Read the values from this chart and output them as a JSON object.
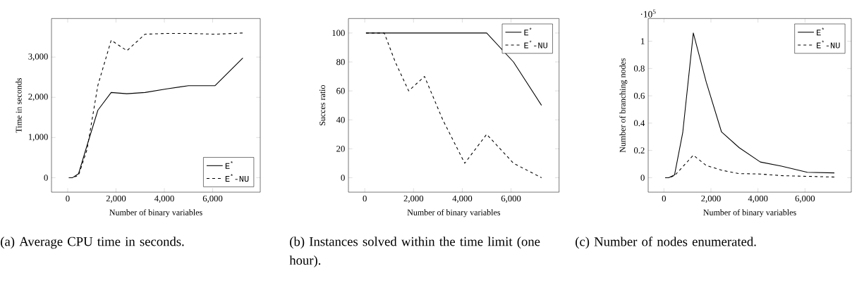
{
  "chart_data": [
    {
      "type": "line",
      "title": "(a) Average CPU time in seconds.",
      "xlabel": "Number of binary variables",
      "ylabel": "Time in seconds",
      "x": [
        50,
        200,
        450,
        800,
        1250,
        1800,
        2450,
        3200,
        4100,
        5000,
        6100,
        7250
      ],
      "series": [
        {
          "name": "E$^{*}$",
          "color": "#000000",
          "line_style": "solid",
          "values": [
            0,
            0,
            100,
            800,
            1680,
            2120,
            2090,
            2120,
            2210,
            2290,
            2290,
            2980
          ]
        },
        {
          "name": "E$^{*}$-NU",
          "color": "#000000",
          "line_style": "dashed",
          "values": [
            0,
            0,
            60,
            700,
            2300,
            3420,
            3160,
            3570,
            3590,
            3590,
            3570,
            3600
          ]
        }
      ],
      "xlim": [
        -670,
        7970
      ],
      "ylim": [
        -360,
        3960
      ],
      "xticks": [
        0,
        {
          "value": 2000,
          "label": "2,000"
        },
        {
          "value": 4000,
          "label": "4,000"
        },
        {
          "value": 6000,
          "label": "6,000"
        }
      ],
      "yticks": [
        0,
        {
          "value": 1000,
          "label": "1,000"
        },
        {
          "value": 2000,
          "label": "2,000"
        },
        {
          "value": 3000,
          "label": "3,000"
        }
      ],
      "legend": "bottom right",
      "marker": "none",
      "grid": false
    },
    {
      "type": "line",
      "title": "(b) Instances solved within the time limit (one hour).",
      "xlabel": "Number of binary variables",
      "ylabel": "Succes ratio",
      "x": [
        50,
        200,
        450,
        800,
        1250,
        1800,
        2450,
        3200,
        4100,
        5000,
        6100,
        7250
      ],
      "series": [
        {
          "name": "E$^{*}$",
          "color": "#000000",
          "line_style": "solid",
          "values": [
            100,
            100,
            100,
            100,
            100,
            100,
            100,
            100,
            100,
            100,
            80,
            50
          ]
        },
        {
          "name": "E$^{*}$-NU",
          "color": "#000000",
          "line_style": "dashed",
          "values": [
            100,
            100,
            100,
            100,
            80,
            60,
            70,
            40,
            10,
            30,
            10,
            0
          ]
        }
      ],
      "xlim": [
        -670,
        7970
      ],
      "ylim": [
        -10,
        110
      ],
      "xticks": [
        0,
        {
          "value": 2000,
          "label": "2,000"
        },
        {
          "value": 4000,
          "label": "4,000"
        },
        {
          "value": 6000,
          "label": "6,000"
        }
      ],
      "yticks": [
        0,
        20,
        40,
        60,
        80,
        100
      ],
      "legend": "top right",
      "marker": "none",
      "grid": false
    },
    {
      "type": "line",
      "title": "(c) Number of nodes enumerated.",
      "xlabel": "Number of binary variables",
      "ylabel": "Number of branching nodes",
      "annotations": [
        "·10$^{5}$"
      ],
      "x": [
        50,
        200,
        450,
        800,
        1250,
        1800,
        2450,
        3200,
        4100,
        5000,
        6100,
        7250
      ],
      "series": [
        {
          "name": "E$^{*}$",
          "color": "#000000",
          "line_style": "solid",
          "values": [
            0,
            0,
            0.02,
            0.33,
            1.06,
            0.7,
            0.335,
            0.22,
            0.115,
            0.085,
            0.04,
            0.035
          ]
        },
        {
          "name": "E$^{*}$-NU",
          "color": "#000000",
          "line_style": "dashed",
          "values": [
            0,
            0,
            0.015,
            0.08,
            0.165,
            0.09,
            0.055,
            0.03,
            0.027,
            0.015,
            0.01,
            0.005
          ]
        }
      ],
      "xlim": [
        -670,
        7970
      ],
      "ylim": [
        -0.106,
        1.166
      ],
      "xticks": [
        0,
        {
          "value": 2000,
          "label": "2,000"
        },
        {
          "value": 4000,
          "label": "4,000"
        },
        {
          "value": 6000,
          "label": "6,000"
        }
      ],
      "yticks": [
        0,
        0.2,
        0.4,
        0.6,
        0.8,
        1
      ],
      "legend": "top right",
      "marker": "none",
      "grid": false
    }
  ]
}
